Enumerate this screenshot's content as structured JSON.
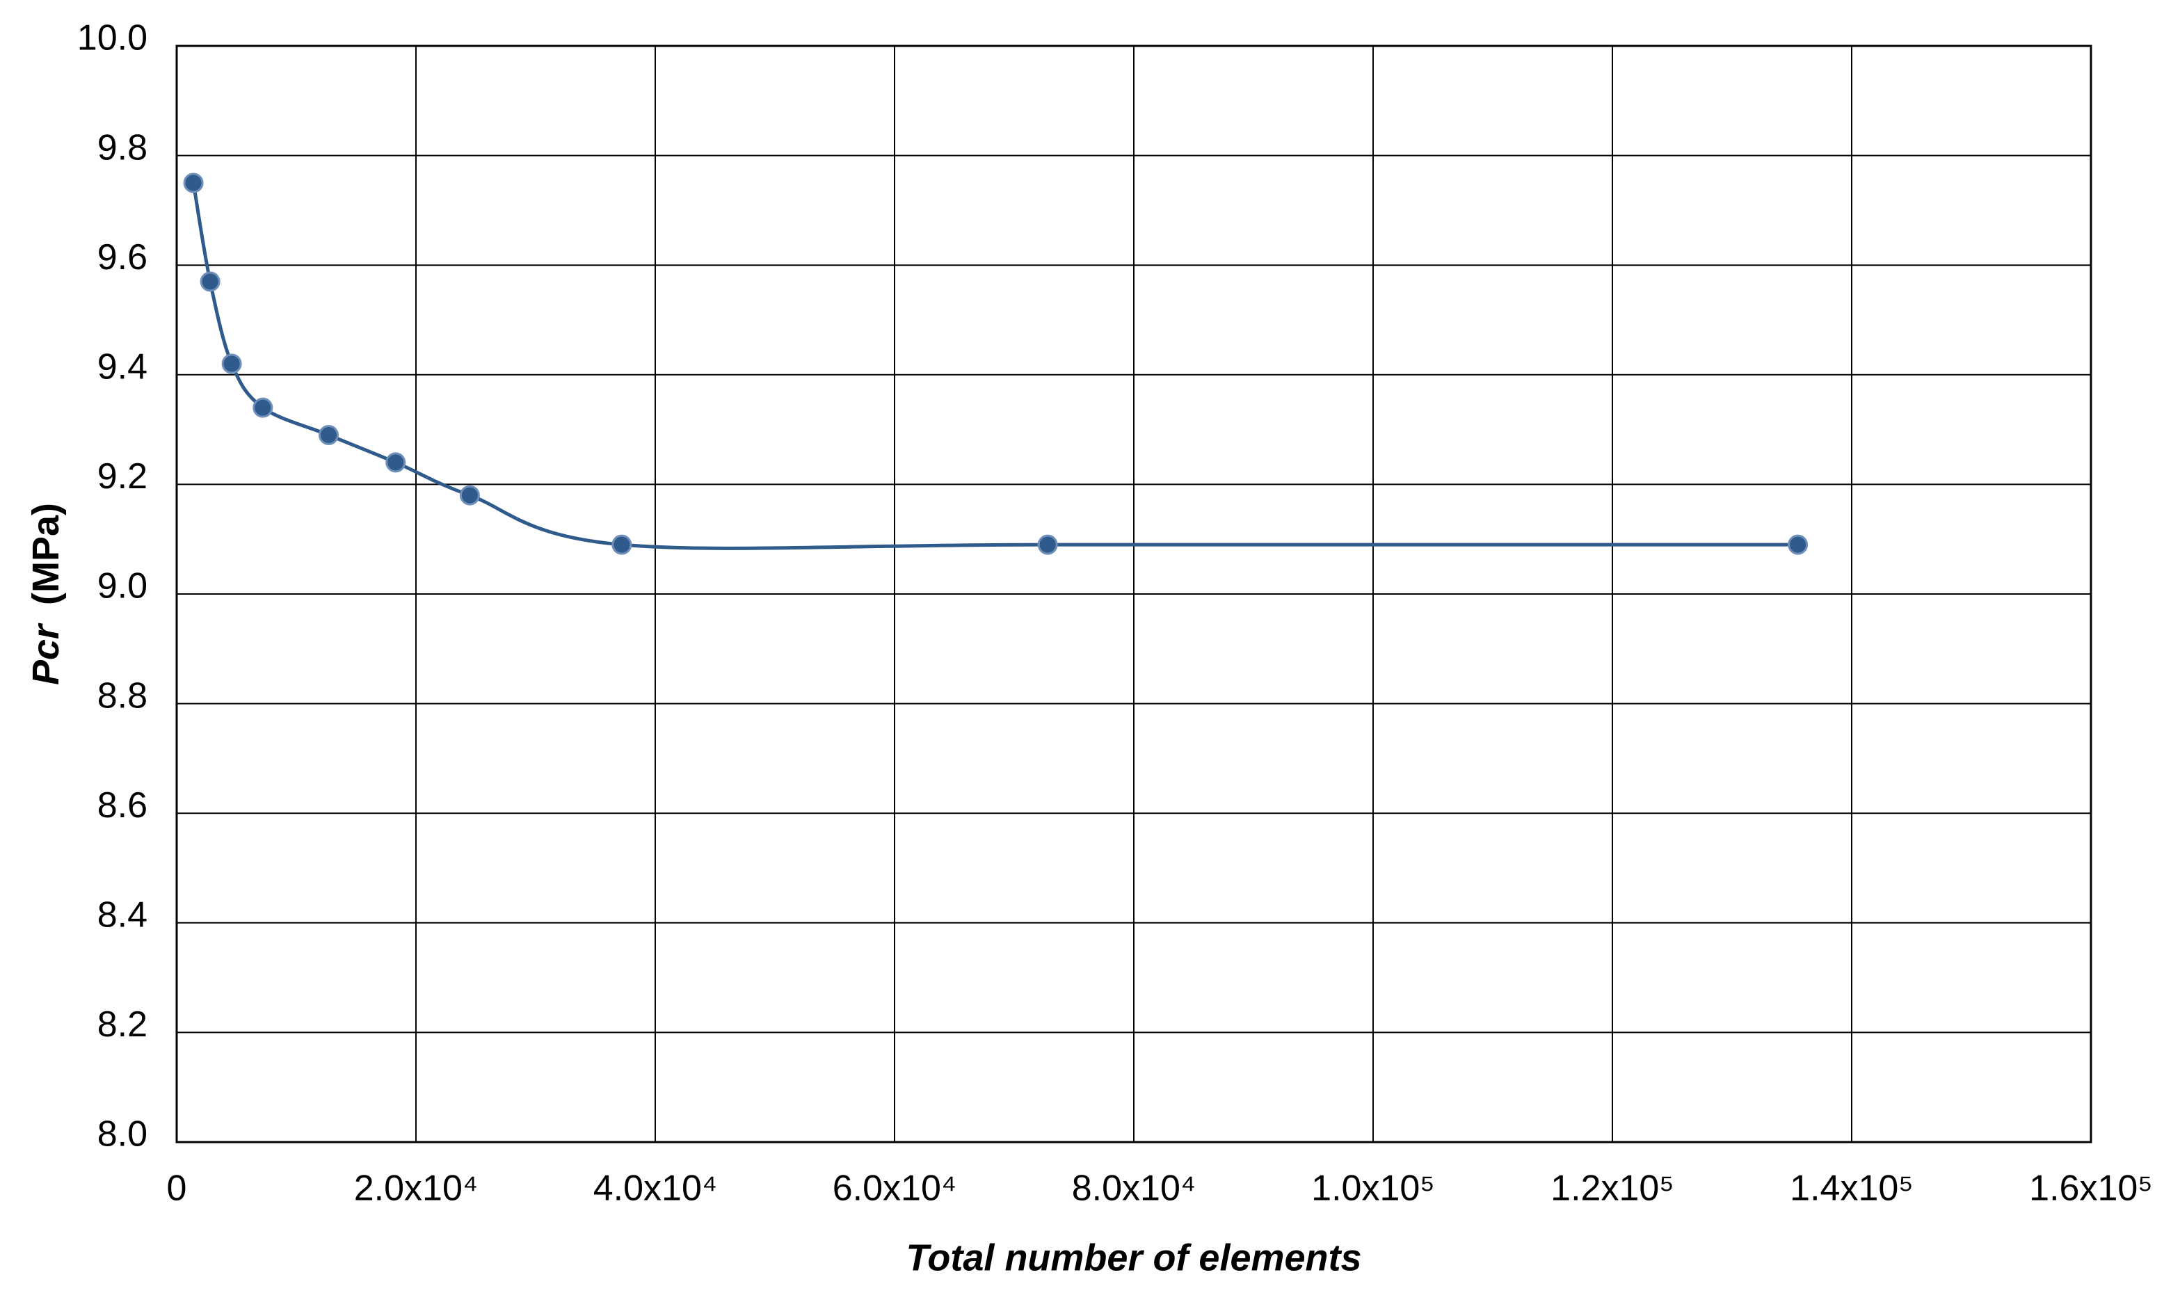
{
  "chart_data": {
    "type": "line",
    "x_label": "Total number of elements",
    "y_label": "Pcr",
    "y_label_unit": "(MPa)",
    "smooth": true,
    "grid": true,
    "series": [
      {
        "color": "#2e5a8c",
        "x": [
          1400,
          2800,
          4600,
          7200,
          12700,
          18300,
          24500,
          37200,
          72800,
          135500
        ],
        "values": [
          9.75,
          9.57,
          9.42,
          9.34,
          9.29,
          9.24,
          9.18,
          9.09,
          9.09,
          9.09
        ]
      }
    ],
    "xlim": [
      0,
      160000
    ],
    "xticks": [
      0,
      {
        "value": 20000,
        "label": "2.0x10⁴"
      },
      {
        "value": 40000,
        "label": "4.0x10⁴"
      },
      {
        "value": 60000,
        "label": "6.0x10⁴"
      },
      {
        "value": 80000,
        "label": "8.0x10⁴"
      },
      {
        "value": 100000,
        "label": "1.0x10⁵"
      },
      {
        "value": 120000,
        "label": "1.2x10⁵"
      },
      {
        "value": 140000,
        "label": "1.4x10⁵"
      },
      {
        "value": 160000,
        "label": "1.6x10⁵"
      }
    ],
    "ylim": [
      8,
      10
    ],
    "yticks": [
      {
        "value": 8,
        "label": "8.0"
      },
      8.2,
      8.4,
      8.6,
      8.8,
      {
        "value": 9,
        "label": "9.0"
      },
      9.2,
      9.4,
      9.6,
      9.8,
      {
        "value": 10,
        "label": "10.0"
      }
    ]
  }
}
